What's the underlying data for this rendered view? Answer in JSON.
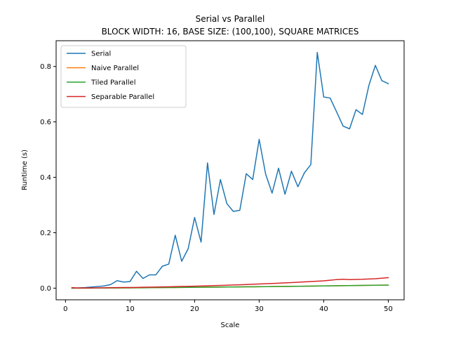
{
  "chart_data": {
    "type": "line",
    "title": "Serial vs Parallel",
    "subtitle": "BLOCK WIDTH: 16, BASE SIZE: (100,100), SQUARE MATRICES",
    "xlabel": "Scale",
    "ylabel": "Runtime (s)",
    "xlim": [
      -1.45,
      52.45
    ],
    "ylim": [
      -0.042,
      0.893
    ],
    "xticks": [
      0,
      10,
      20,
      30,
      40,
      50
    ],
    "yticks": [
      0.0,
      0.2,
      0.4,
      0.6,
      0.8
    ],
    "xtick_labels": [
      "0",
      "10",
      "20",
      "30",
      "40",
      "50"
    ],
    "ytick_labels": [
      "0.0",
      "0.2",
      "0.4",
      "0.6",
      "0.8"
    ],
    "legend_position": "top-left",
    "grid": false,
    "x": [
      1,
      2,
      3,
      4,
      5,
      6,
      7,
      8,
      9,
      10,
      11,
      12,
      13,
      14,
      15,
      16,
      17,
      18,
      19,
      20,
      21,
      22,
      23,
      24,
      25,
      26,
      27,
      28,
      29,
      30,
      31,
      32,
      33,
      34,
      35,
      36,
      37,
      38,
      39,
      40,
      41,
      42,
      43,
      44,
      45,
      46,
      47,
      48,
      49,
      50
    ],
    "series": [
      {
        "name": "Serial",
        "color": "#1f77b4",
        "values": [
          0.0,
          0.001,
          0.002,
          0.004,
          0.006,
          0.008,
          0.013,
          0.027,
          0.022,
          0.024,
          0.061,
          0.035,
          0.048,
          0.048,
          0.079,
          0.087,
          0.191,
          0.097,
          0.142,
          0.255,
          0.166,
          0.452,
          0.266,
          0.392,
          0.305,
          0.277,
          0.281,
          0.413,
          0.392,
          0.537,
          0.412,
          0.343,
          0.433,
          0.339,
          0.422,
          0.366,
          0.416,
          0.446,
          0.851,
          0.69,
          0.686,
          0.636,
          0.585,
          0.575,
          0.644,
          0.627,
          0.732,
          0.804,
          0.749,
          0.738
        ]
      },
      {
        "name": "Naive Parallel",
        "color": "#ff7f0e",
        "values": [
          0.0,
          0.0,
          0.0,
          0.0,
          0.0005,
          0.0006,
          0.0008,
          0.0009,
          0.001,
          0.0012,
          0.0014,
          0.0015,
          0.0017,
          0.0019,
          0.0021,
          0.0023,
          0.0025,
          0.0027,
          0.0029,
          0.0031,
          0.0033,
          0.0035,
          0.0037,
          0.0039,
          0.0041,
          0.0043,
          0.0046,
          0.0048,
          0.005,
          0.0052,
          0.0055,
          0.0057,
          0.006,
          0.0063,
          0.0066,
          0.0069,
          0.0072,
          0.0075,
          0.0078,
          0.0081,
          0.0084,
          0.0087,
          0.009,
          0.0093,
          0.0096,
          0.0099,
          0.0102,
          0.0105,
          0.0108,
          0.011
        ]
      },
      {
        "name": "Tiled Parallel",
        "color": "#2ca02c",
        "values": [
          0.0,
          0.0,
          0.0,
          0.0003,
          0.0005,
          0.0006,
          0.0008,
          0.0009,
          0.001,
          0.0012,
          0.0014,
          0.0015,
          0.0017,
          0.0019,
          0.0021,
          0.0023,
          0.0025,
          0.0027,
          0.0029,
          0.0031,
          0.0033,
          0.0035,
          0.0037,
          0.0039,
          0.0041,
          0.0043,
          0.0046,
          0.0048,
          0.005,
          0.0052,
          0.0055,
          0.0057,
          0.006,
          0.0063,
          0.0066,
          0.0069,
          0.0072,
          0.0075,
          0.0078,
          0.0081,
          0.0084,
          0.0087,
          0.009,
          0.0093,
          0.0096,
          0.0099,
          0.0102,
          0.0105,
          0.0108,
          0.011
        ]
      },
      {
        "name": "Separable Parallel",
        "color": "#d62728",
        "values": [
          0.002,
          0.0005,
          0.0007,
          0.0009,
          0.0012,
          0.0014,
          0.0016,
          0.0019,
          0.0022,
          0.0025,
          0.0028,
          0.0032,
          0.0036,
          0.004,
          0.0045,
          0.005,
          0.0055,
          0.006,
          0.0066,
          0.0072,
          0.0078,
          0.0085,
          0.0092,
          0.0099,
          0.0107,
          0.0115,
          0.0123,
          0.0132,
          0.0141,
          0.015,
          0.016,
          0.017,
          0.018,
          0.0191,
          0.0202,
          0.0214,
          0.0226,
          0.0238,
          0.0251,
          0.0264,
          0.0285,
          0.031,
          0.032,
          0.031,
          0.0315,
          0.032,
          0.033,
          0.034,
          0.036,
          0.038
        ]
      }
    ]
  }
}
